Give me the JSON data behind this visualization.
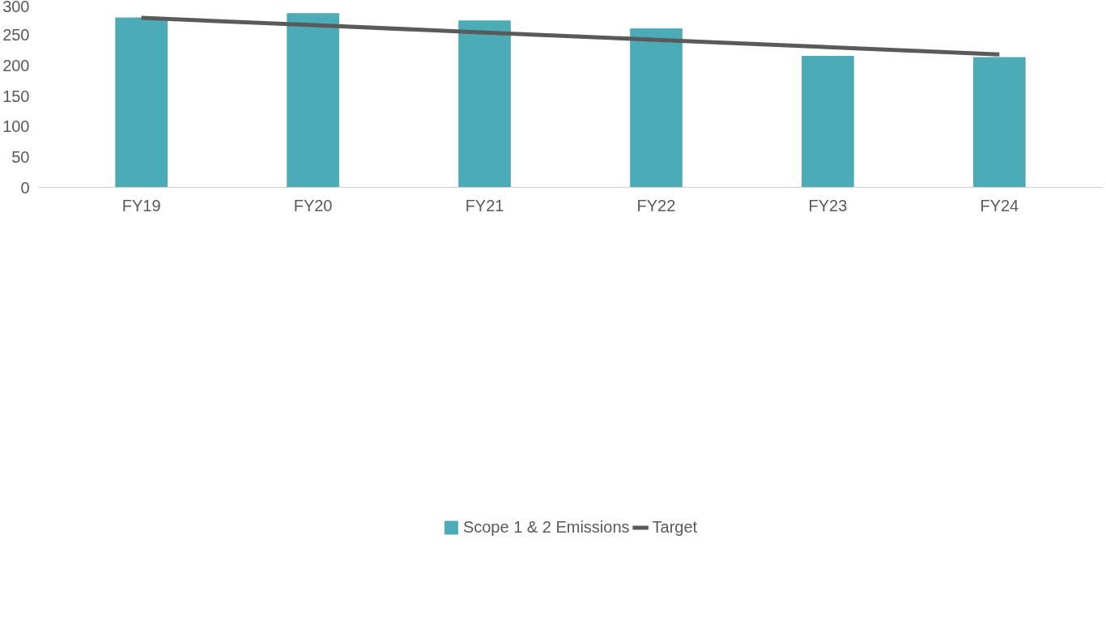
{
  "chart_data": {
    "type": "bar",
    "categories": [
      "FY19",
      "FY20",
      "FY21",
      "FY22",
      "FY23",
      "FY24"
    ],
    "series": [
      {
        "name": "Scope 1 & 2 Emissions",
        "color": "#4bacb8",
        "values": [
          278,
          285,
          273,
          260,
          215,
          213
        ]
      },
      {
        "name": "Target",
        "type": "line",
        "color": "#5a5a5a",
        "values": [
          278,
          266,
          254,
          242,
          230,
          218
        ]
      }
    ],
    "ylim": [
      0,
      300
    ],
    "yticks": [
      0,
      50,
      100,
      150,
      200,
      250,
      300
    ],
    "grid": false,
    "legend": "bottom",
    "marker": "none",
    "line_style": "solid"
  }
}
